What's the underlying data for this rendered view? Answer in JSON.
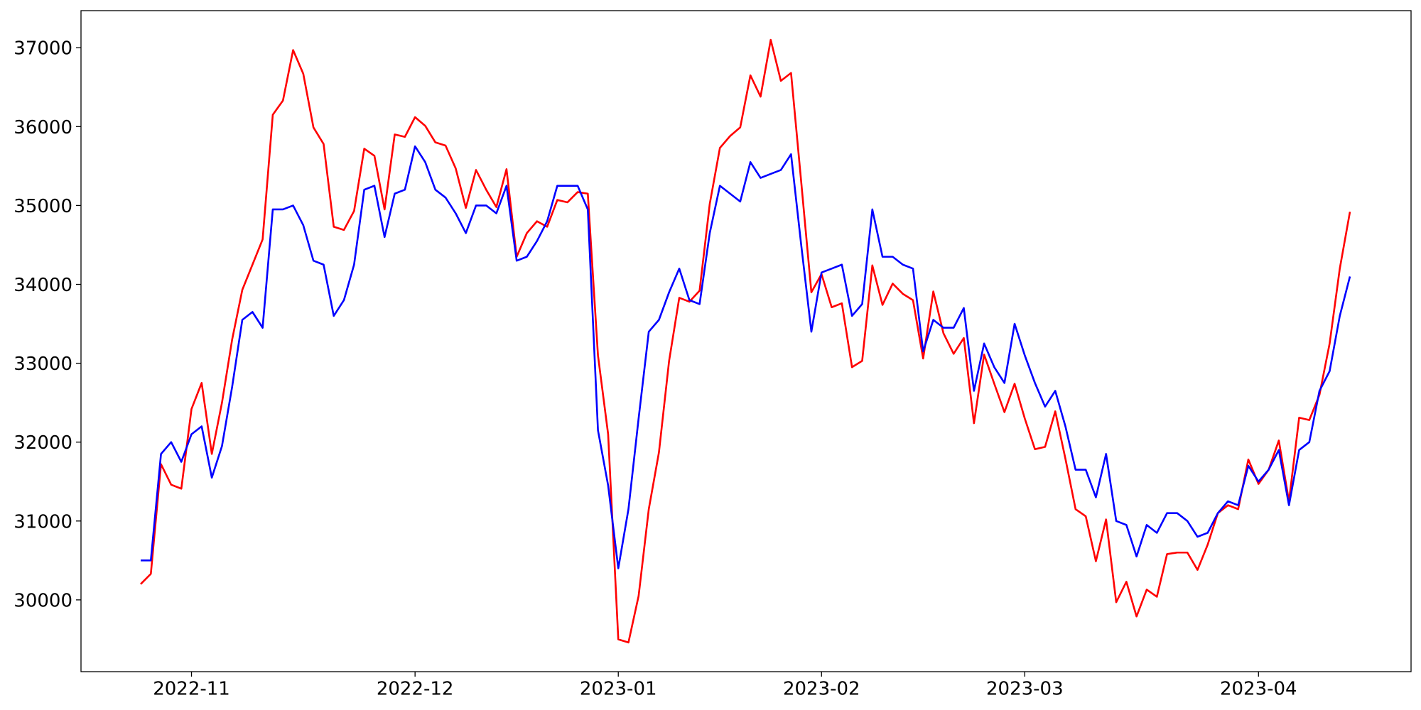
{
  "chart_data": {
    "type": "line",
    "categories": [
      null,
      null,
      null,
      null,
      null,
      "2022-11",
      null,
      null,
      null,
      null,
      null,
      null,
      null,
      null,
      null,
      null,
      null,
      null,
      null,
      null,
      null,
      null,
      null,
      null,
      null,
      null,
      null,
      "2022-12",
      null,
      null,
      null,
      null,
      null,
      null,
      null,
      null,
      null,
      null,
      null,
      null,
      null,
      null,
      null,
      null,
      null,
      null,
      null,
      "2023-01",
      null,
      null,
      null,
      null,
      null,
      null,
      null,
      null,
      null,
      null,
      null,
      null,
      null,
      null,
      null,
      null,
      null,
      null,
      null,
      "2023-02",
      null,
      null,
      null,
      null,
      null,
      null,
      null,
      null,
      null,
      null,
      null,
      null,
      null,
      null,
      null,
      null,
      null,
      null,
      null,
      "2023-03",
      null,
      null,
      null,
      null,
      null,
      null,
      null,
      null,
      null,
      null,
      null,
      null,
      null,
      null,
      null,
      null,
      null,
      null,
      null,
      null,
      null,
      null,
      "2023-04",
      null,
      null,
      null,
      null,
      null,
      null,
      null,
      null,
      null
    ],
    "series": [
      {
        "color": "#0000ff",
        "values": [
          30500,
          30500,
          31850,
          32000,
          31750,
          32100,
          32200,
          31550,
          31950,
          32700,
          33550,
          33650,
          33450,
          34950,
          34950,
          35000,
          34750,
          34300,
          34250,
          33600,
          33800,
          34250,
          35200,
          35250,
          34600,
          35150,
          35200,
          35750,
          35550,
          35200,
          35100,
          34900,
          34650,
          35000,
          35000,
          34900,
          35250,
          34300,
          34350,
          34550,
          34800,
          35250,
          35250,
          35250,
          34950,
          32150,
          31450,
          30400,
          31150,
          32300,
          33400,
          33550,
          33900,
          34200,
          33800,
          33750,
          34650,
          35250,
          35150,
          35050,
          35550,
          35350,
          35400,
          35450,
          35650,
          34500,
          33400,
          34150,
          34200,
          34250,
          33600,
          33750,
          34950,
          34350,
          34350,
          34250,
          34200,
          33150,
          33550,
          33450,
          33450,
          33700,
          32650,
          33250,
          32950,
          32750,
          33500,
          33100,
          32750,
          32450,
          32650,
          32200,
          31650,
          31650,
          31300,
          31850,
          31000,
          30950,
          30550,
          30950,
          30850,
          31100,
          31100,
          31000,
          30800,
          30850,
          31100,
          31250,
          31200,
          31700,
          31500,
          31650,
          31900,
          31200,
          31900,
          32000,
          32650,
          32900,
          33600,
          34100
        ]
      },
      {
        "color": "#ff0000",
        "values": [
          30200,
          30330,
          31720,
          31460,
          31410,
          32420,
          32750,
          31850,
          32500,
          33300,
          33930,
          34250,
          34570,
          36150,
          36330,
          36970,
          36670,
          35990,
          35780,
          34730,
          34690,
          34930,
          35720,
          35630,
          34950,
          35900,
          35870,
          36120,
          36010,
          35800,
          35760,
          35470,
          34970,
          35450,
          35200,
          34980,
          35460,
          34350,
          34650,
          34800,
          34730,
          35070,
          35040,
          35170,
          35150,
          33100,
          32100,
          29500,
          29460,
          30050,
          31150,
          31870,
          33030,
          33830,
          33780,
          33920,
          35020,
          35730,
          35880,
          35990,
          36650,
          36380,
          37100,
          36580,
          36680,
          35300,
          33900,
          34130,
          33710,
          33760,
          32950,
          33030,
          34240,
          33740,
          34010,
          33880,
          33800,
          33060,
          33910,
          33380,
          33120,
          33320,
          32240,
          33110,
          32740,
          32380,
          32740,
          32300,
          31910,
          31940,
          32390,
          31790,
          31150,
          31060,
          30490,
          31020,
          29970,
          30230,
          29790,
          30130,
          30040,
          30580,
          30600,
          30600,
          30380,
          30700,
          31100,
          31200,
          31150,
          31780,
          31470,
          31650,
          32020,
          31250,
          32310,
          32280,
          32600,
          33250,
          34200,
          34920
        ]
      }
    ],
    "ylim": [
      29090,
      37470
    ],
    "yticks": [
      30000,
      31000,
      32000,
      33000,
      34000,
      35000,
      36000,
      37000
    ],
    "grid": false
  }
}
